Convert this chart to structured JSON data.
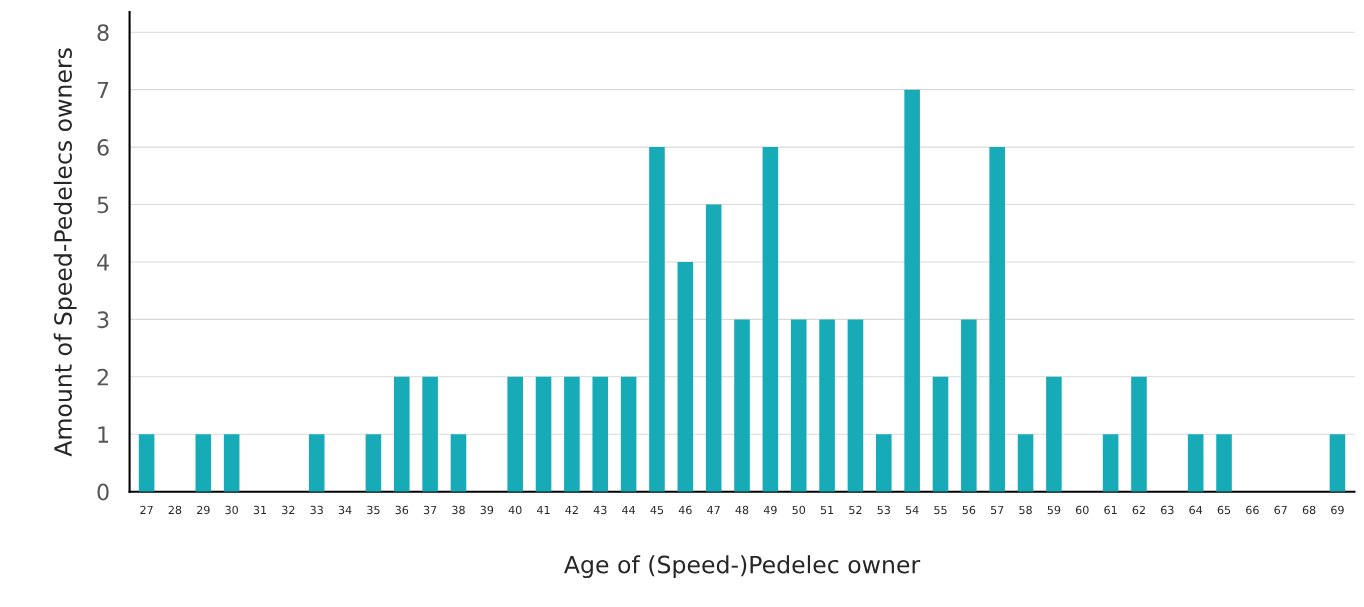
{
  "chart_data": {
    "type": "bar",
    "xlabel": "Age of (Speed-)Pedelec owner",
    "ylabel": "Amount of Speed-Pedelecs owners",
    "categories": [
      "27",
      "28",
      "29",
      "30",
      "31",
      "32",
      "33",
      "34",
      "35",
      "36",
      "37",
      "38",
      "39",
      "40",
      "41",
      "42",
      "43",
      "44",
      "45",
      "46",
      "47",
      "48",
      "49",
      "50",
      "51",
      "52",
      "53",
      "54",
      "55",
      "56",
      "57",
      "58",
      "59",
      "60",
      "61",
      "62",
      "63",
      "64",
      "65",
      "66",
      "67",
      "68",
      "69"
    ],
    "values": [
      1,
      0,
      1,
      1,
      0,
      0,
      1,
      0,
      1,
      2,
      2,
      1,
      0,
      2,
      2,
      2,
      2,
      2,
      6,
      4,
      5,
      3,
      6,
      3,
      3,
      3,
      1,
      7,
      2,
      3,
      6,
      1,
      2,
      0,
      1,
      2,
      0,
      1,
      1,
      0,
      0,
      0,
      1
    ],
    "color": "#17abb8",
    "ylim": [
      0,
      8.35
    ],
    "yticks": [
      0,
      1,
      2,
      3,
      4,
      5,
      6,
      7,
      8
    ],
    "grid": "y",
    "legend": false
  }
}
